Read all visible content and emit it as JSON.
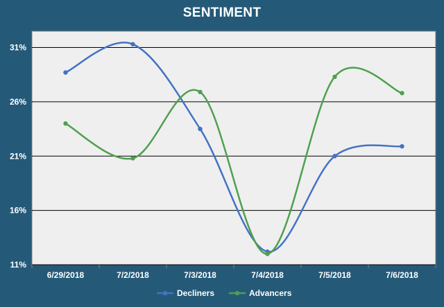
{
  "chart_data": {
    "type": "line",
    "title": "SENTIMENT",
    "categories": [
      "6/29/2018",
      "7/2/2018",
      "7/3/2018",
      "7/4/2018",
      "7/5/2018",
      "7/6/2018"
    ],
    "series": [
      {
        "name": "Decliners",
        "color": "#4472c4",
        "values": [
          28.7,
          31.3,
          23.5,
          12.2,
          21.0,
          21.9
        ]
      },
      {
        "name": "Advancers",
        "color": "#4ea04e",
        "values": [
          24.0,
          20.8,
          26.9,
          12.0,
          28.3,
          26.8
        ]
      }
    ],
    "yticks": [
      "11%",
      "16%",
      "21%",
      "26%",
      "31%"
    ],
    "ylim": [
      11,
      32.5
    ],
    "ytick_values": [
      11,
      16,
      21,
      26,
      31
    ],
    "grid": true,
    "legend_position": "bottom",
    "plot_background": "#efefef",
    "background": "#245a78"
  }
}
